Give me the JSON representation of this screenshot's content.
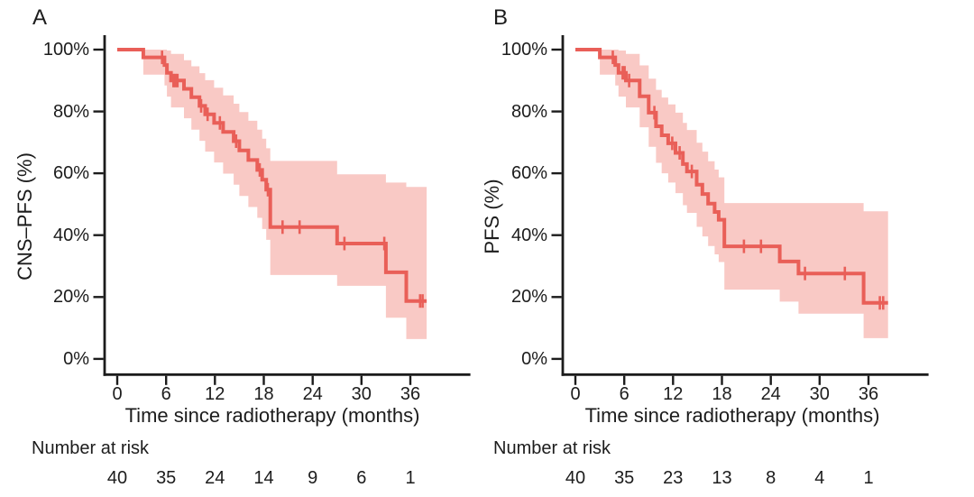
{
  "figure": {
    "background": "#ffffff",
    "text_color": "#1c1c1c",
    "axis_color": "#1c1c1c",
    "curve_color": "#E95F58",
    "band_color": "#F9C9C5"
  },
  "chart_data": [
    {
      "id": "A",
      "type": "line",
      "subtype": "kaplan-meier-step-with-confidence-band",
      "panel_label": "A",
      "ylabel": "CNS–PFS (%)",
      "xlabel": "Time since radiotherapy (months)",
      "xlim": [
        0,
        38
      ],
      "ylim": [
        0,
        100
      ],
      "grid": false,
      "legend": "none",
      "x_ticks": [
        0,
        6,
        12,
        18,
        24,
        30,
        36
      ],
      "x_tick_labels": [
        "0",
        "6",
        "12",
        "18",
        "24",
        "30",
        "36"
      ],
      "y_ticks": [
        100,
        80,
        60,
        40,
        20,
        0
      ],
      "y_tick_labels": [
        "100%",
        "80%",
        "60%",
        "40%",
        "20%",
        "0%"
      ],
      "t_end": 38.0,
      "steps": [
        [
          0.0,
          100.0,
          100.0,
          100.0
        ],
        [
          3.2,
          97.5,
          91.9,
          100.0
        ],
        [
          5.8,
          95.0,
          88.4,
          100.0
        ],
        [
          6.1,
          92.5,
          84.8,
          99.7
        ],
        [
          6.6,
          90.0,
          81.3,
          98.6
        ],
        [
          8.2,
          87.3,
          77.8,
          96.6
        ],
        [
          9.1,
          84.6,
          74.1,
          94.6
        ],
        [
          10.1,
          81.8,
          70.5,
          92.4
        ],
        [
          10.8,
          79.1,
          67.0,
          90.1
        ],
        [
          11.9,
          76.3,
          63.5,
          87.7
        ],
        [
          13.0,
          73.4,
          59.9,
          85.2
        ],
        [
          14.3,
          70.4,
          56.3,
          82.5
        ],
        [
          15.0,
          67.4,
          52.7,
          79.8
        ],
        [
          16.1,
          64.3,
          49.1,
          77.0
        ],
        [
          17.2,
          61.1,
          45.6,
          74.1
        ],
        [
          17.8,
          57.9,
          42.0,
          71.2
        ],
        [
          18.3,
          54.7,
          38.5,
          68.1
        ],
        [
          18.8,
          42.6,
          27.1,
          64.0
        ],
        [
          27.0,
          37.3,
          23.6,
          59.7
        ],
        [
          33.0,
          28.0,
          13.3,
          57.0
        ],
        [
          35.5,
          18.7,
          6.4,
          55.6
        ]
      ],
      "censors": [
        [
          5.5,
          97.5
        ],
        [
          6.9,
          90.0
        ],
        [
          7.15,
          90.0
        ],
        [
          7.4,
          90.0
        ],
        [
          10.3,
          81.8
        ],
        [
          11.1,
          79.1
        ],
        [
          12.6,
          76.3
        ],
        [
          14.6,
          70.4
        ],
        [
          17.5,
          61.1
        ],
        [
          18.5,
          54.7
        ],
        [
          20.3,
          42.6
        ],
        [
          22.4,
          42.6
        ],
        [
          27.9,
          37.3
        ],
        [
          32.8,
          37.3
        ],
        [
          37.2,
          18.7
        ],
        [
          37.5,
          18.7
        ]
      ],
      "risk_label": "Number at risk",
      "risk_counts": [
        40,
        35,
        24,
        14,
        9,
        6,
        1
      ]
    },
    {
      "id": "B",
      "type": "line",
      "subtype": "kaplan-meier-step-with-confidence-band",
      "panel_label": "B",
      "ylabel": "PFS (%)",
      "xlabel": "Time since radiotherapy (months)",
      "xlim": [
        0,
        38
      ],
      "ylim": [
        0,
        100
      ],
      "grid": false,
      "legend": "none",
      "x_ticks": [
        0,
        6,
        12,
        18,
        24,
        30,
        36
      ],
      "x_tick_labels": [
        "0",
        "6",
        "12",
        "18",
        "24",
        "30",
        "36"
      ],
      "y_ticks": [
        100,
        80,
        60,
        40,
        20,
        0
      ],
      "y_tick_labels": [
        "100%",
        "80%",
        "60%",
        "40%",
        "20%",
        "0%"
      ],
      "t_end": 38.4,
      "steps": [
        [
          0.0,
          100.0,
          100.0,
          100.0
        ],
        [
          3.0,
          97.5,
          91.9,
          100.0
        ],
        [
          4.9,
          95.0,
          88.4,
          100.0
        ],
        [
          5.3,
          92.5,
          84.8,
          99.7
        ],
        [
          6.2,
          90.0,
          81.3,
          98.6
        ],
        [
          7.9,
          84.9,
          74.9,
          94.9
        ],
        [
          9.0,
          79.6,
          68.6,
          90.6
        ],
        [
          9.9,
          75.2,
          63.4,
          87.0
        ],
        [
          10.6,
          72.3,
          60.0,
          84.5
        ],
        [
          11.4,
          69.7,
          57.0,
          82.3
        ],
        [
          12.3,
          66.6,
          53.6,
          79.6
        ],
        [
          13.2,
          63.0,
          49.7,
          76.3
        ],
        [
          13.7,
          60.6,
          47.2,
          74.0
        ],
        [
          14.9,
          56.3,
          42.7,
          69.9
        ],
        [
          15.6,
          53.3,
          39.6,
          67.0
        ],
        [
          16.3,
          50.2,
          36.5,
          63.9
        ],
        [
          17.1,
          47.5,
          33.8,
          61.2
        ],
        [
          17.6,
          45.0,
          31.3,
          58.7
        ],
        [
          18.3,
          36.4,
          22.4,
          50.4
        ],
        [
          25.1,
          31.5,
          18.5,
          50.4
        ],
        [
          27.4,
          27.6,
          14.6,
          50.4
        ],
        [
          35.4,
          18.1,
          6.7,
          47.7
        ]
      ],
      "censors": [
        [
          4.6,
          97.5
        ],
        [
          5.8,
          92.5
        ],
        [
          6.05,
          92.5
        ],
        [
          6.6,
          90.0
        ],
        [
          9.7,
          79.6
        ],
        [
          11.9,
          69.7
        ],
        [
          12.8,
          66.6
        ],
        [
          14.3,
          60.6
        ],
        [
          20.7,
          36.4
        ],
        [
          22.8,
          36.4
        ],
        [
          28.2,
          27.6
        ],
        [
          33.1,
          27.6
        ],
        [
          37.4,
          18.1
        ],
        [
          37.8,
          18.1
        ]
      ],
      "risk_label": "Number at risk",
      "risk_counts": [
        40,
        35,
        23,
        13,
        8,
        4,
        1
      ]
    }
  ]
}
